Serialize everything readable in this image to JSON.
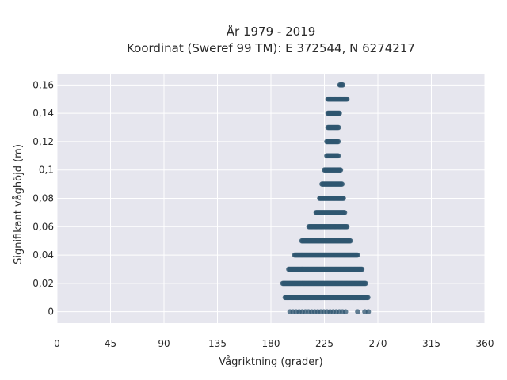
{
  "chart_data": {
    "type": "scatter",
    "title": "År 1979 - 2019",
    "subtitle": "Koordinat (Sweref 99 TM): E 372544, N 6274217",
    "xlabel": "Vågriktning (grader)",
    "ylabel": "Signifikant våghöjd (m)",
    "xlim": [
      0,
      360
    ],
    "ylim": [
      -0.008,
      0.168
    ],
    "x_ticks": [
      0,
      45,
      90,
      135,
      180,
      225,
      270,
      315,
      360
    ],
    "y_ticks": [
      0,
      0.02,
      0.04,
      0.06,
      0.08,
      0.1,
      0.12,
      0.14,
      0.16
    ],
    "y_tick_labels": [
      "0",
      "0,02",
      "0,04",
      "0,06",
      "0,08",
      "0,1",
      "0,12",
      "0,14",
      "0,16"
    ],
    "grid": true,
    "marker_color": "#2f5670",
    "plot_background": "#e6e6ee",
    "grid_color": "#ffffff",
    "series": [
      {
        "bands": [
          {
            "y": 0.0,
            "x_min": 196,
            "x_max": 245,
            "sparse": true,
            "outliers": [
              253,
              259,
              262
            ]
          },
          {
            "y": 0.01,
            "x_min": 192,
            "x_max": 262,
            "sparse": false,
            "outliers": []
          },
          {
            "y": 0.02,
            "x_min": 190,
            "x_max": 260,
            "sparse": false,
            "outliers": []
          },
          {
            "y": 0.03,
            "x_min": 195,
            "x_max": 257,
            "sparse": false,
            "outliers": []
          },
          {
            "y": 0.04,
            "x_min": 200,
            "x_max": 253,
            "sparse": false,
            "outliers": []
          },
          {
            "y": 0.05,
            "x_min": 206,
            "x_max": 247,
            "sparse": false,
            "outliers": []
          },
          {
            "y": 0.06,
            "x_min": 212,
            "x_max": 244,
            "sparse": false,
            "outliers": []
          },
          {
            "y": 0.07,
            "x_min": 218,
            "x_max": 242,
            "sparse": false,
            "outliers": []
          },
          {
            "y": 0.08,
            "x_min": 221,
            "x_max": 241,
            "sparse": false,
            "outliers": []
          },
          {
            "y": 0.09,
            "x_min": 223,
            "x_max": 240,
            "sparse": false,
            "outliers": []
          },
          {
            "y": 0.1,
            "x_min": 225,
            "x_max": 239,
            "sparse": false,
            "outliers": []
          },
          {
            "y": 0.11,
            "x_min": 227,
            "x_max": 237,
            "sparse": false,
            "outliers": []
          },
          {
            "y": 0.12,
            "x_min": 227,
            "x_max": 237,
            "sparse": false,
            "outliers": []
          },
          {
            "y": 0.13,
            "x_min": 228,
            "x_max": 237,
            "sparse": false,
            "outliers": []
          },
          {
            "y": 0.14,
            "x_min": 228,
            "x_max": 238,
            "sparse": false,
            "outliers": []
          },
          {
            "y": 0.15,
            "x_min": 228,
            "x_max": 244,
            "sparse": false,
            "outliers": []
          },
          {
            "y": 0.16,
            "x_min": 238,
            "x_max": 241,
            "sparse": false,
            "outliers": []
          }
        ]
      }
    ]
  }
}
